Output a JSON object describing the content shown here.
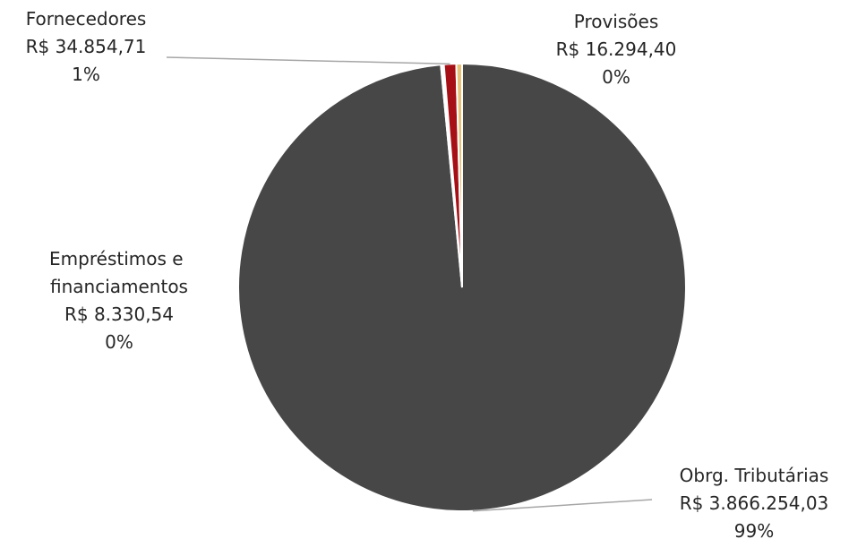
{
  "chart_data": {
    "type": "pie",
    "title": "",
    "slices": [
      {
        "name": "Obrg. Tributárias",
        "value": 3866254.03,
        "value_label": "R$ 3.866.254,03",
        "percent_label": "99%",
        "color": "#474747"
      },
      {
        "name": "Empréstimos e financiamentos",
        "value": 8330.54,
        "value_label": "R$ 8.330,54",
        "percent_label": "0%",
        "color": "#ffffff"
      },
      {
        "name": "Fornecedores",
        "value": 34854.71,
        "value_label": "R$ 34.854,71",
        "percent_label": "1%",
        "color": "#a50f15"
      },
      {
        "name": "Provisões",
        "value": 16294.4,
        "value_label": "R$ 16.294,40",
        "percent_label": "0%",
        "color": "#e6c177"
      }
    ],
    "leader_line_color": "#a6a6a6",
    "label_color": "#262626"
  }
}
